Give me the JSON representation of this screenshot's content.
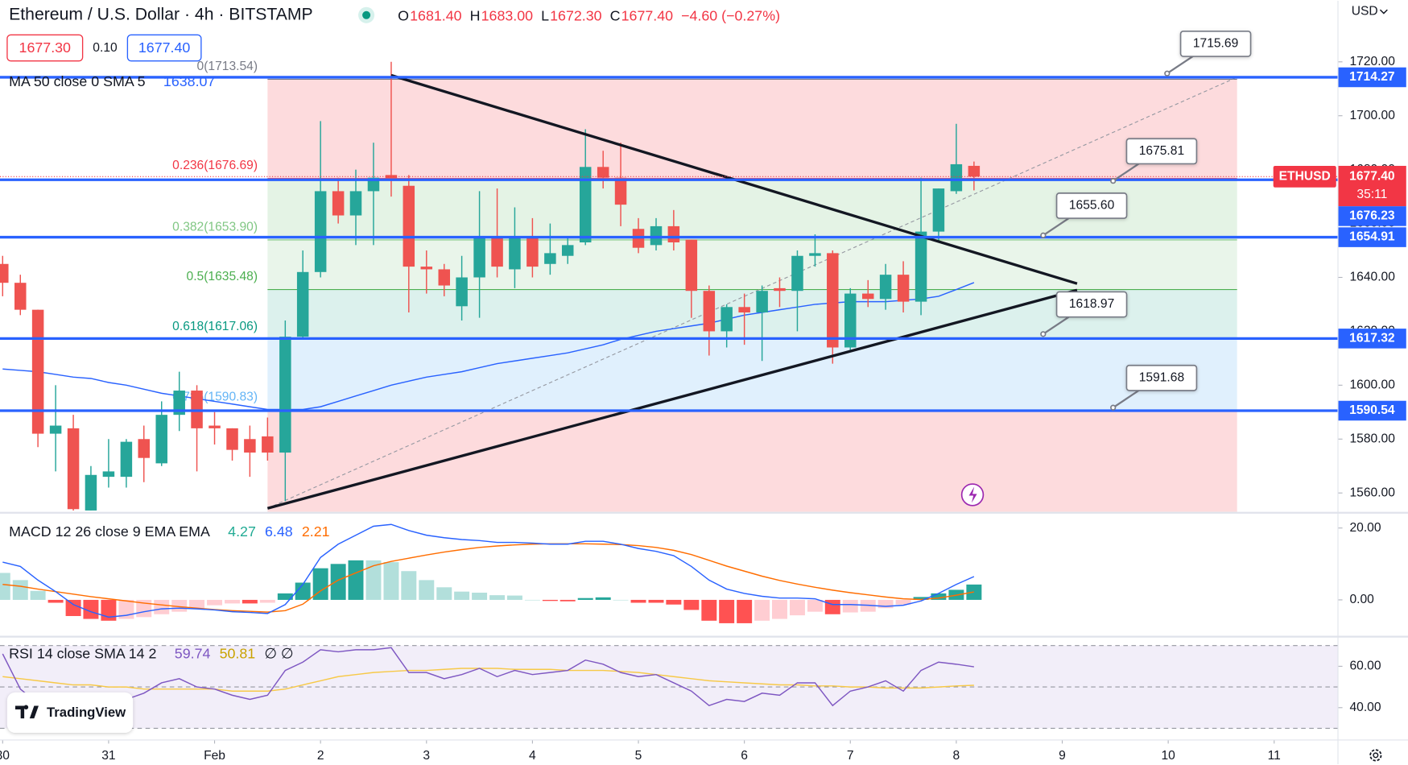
{
  "header": {
    "title": "Ethereum / U.S. Dollar · 4h · BITSTAMP",
    "ohlc": [
      {
        "key": "O",
        "value": "1681.40"
      },
      {
        "key": "H",
        "value": "1683.00"
      },
      {
        "key": "L",
        "value": "1672.30"
      },
      {
        "key": "C",
        "value": "1677.40"
      }
    ],
    "change": "−4.60 (−0.27%)",
    "bid": "1677.30",
    "spread": "0.10",
    "ask": "1677.40",
    "currency": "USD",
    "brand": "TradingView"
  },
  "chart_data": [
    {
      "type": "candlestick",
      "x": [
        0,
        0.167,
        0.333,
        0.5,
        0.667,
        0.833,
        1,
        1.167,
        1.333,
        1.5,
        1.667,
        1.833,
        2,
        2.167,
        2.333,
        2.5,
        2.667,
        2.833,
        3,
        3.167,
        3.333,
        3.5,
        3.667,
        3.833,
        4,
        4.167,
        4.333,
        4.5,
        4.667,
        4.833,
        5,
        5.167,
        5.333,
        5.5,
        5.667,
        5.833,
        6,
        6.167,
        6.333,
        6.5,
        6.667,
        6.833,
        7,
        7.167,
        7.333,
        7.5,
        7.667,
        7.833,
        8,
        8.167,
        8.333,
        8.5,
        8.667,
        8.833,
        9,
        9.167
      ],
      "open": [
        1645,
        1638,
        1628,
        1582,
        1584,
        1553.5,
        1566,
        1566,
        1580,
        1571,
        1589,
        1598,
        1585,
        1584,
        1580,
        1581,
        1575,
        1618,
        1642,
        1672,
        1663,
        1672,
        1678,
        1674,
        1644,
        1643,
        1629.3,
        1640,
        1655,
        1643,
        1655,
        1645,
        1648,
        1653,
        1681,
        1677,
        1658,
        1652,
        1659,
        1654,
        1635,
        1620,
        1629,
        1627,
        1636,
        1635,
        1648,
        1649,
        1614,
        1634,
        1632,
        1641,
        1631,
        1657,
        1672,
        1681.4
      ],
      "high": [
        1648,
        1641,
        1628,
        1600,
        1589,
        1570,
        1580,
        1580,
        1585,
        1594,
        1605,
        1600,
        1590,
        1584,
        1585,
        1588,
        1624,
        1650,
        1698,
        1677,
        1680,
        1690,
        1720,
        1678,
        1650,
        1645,
        1648,
        1672,
        1673,
        1666,
        1662,
        1660,
        1655,
        1695,
        1687,
        1690,
        1662,
        1662,
        1665,
        1654,
        1637,
        1630,
        1634,
        1637,
        1640,
        1650,
        1656,
        1650,
        1636,
        1639,
        1645,
        1646,
        1677,
        1673,
        1697,
        1683
      ],
      "low": [
        1633,
        1626,
        1577,
        1568,
        1553.5,
        1553.5,
        1562,
        1562,
        1564,
        1570,
        1583,
        1568,
        1578,
        1572,
        1566,
        1572,
        1557,
        1617,
        1640,
        1660,
        1652,
        1652,
        1670,
        1627,
        1634,
        1633,
        1624,
        1625,
        1640,
        1636,
        1640,
        1641,
        1645,
        1652,
        1673,
        1659,
        1649,
        1650,
        1650,
        1625,
        1611,
        1614,
        1615,
        1609,
        1629,
        1620,
        1644,
        1608,
        1613,
        1629,
        1628,
        1627,
        1626,
        1653,
        1671,
        1672.3
      ],
      "close": [
        1638,
        1628,
        1582,
        1585,
        1554,
        1566.7,
        1568,
        1579,
        1573,
        1589,
        1598,
        1584,
        1584,
        1576,
        1575,
        1575,
        1618,
        1642,
        1672,
        1663,
        1672,
        1677,
        1676,
        1644,
        1643,
        1637,
        1640,
        1655,
        1644,
        1655,
        1644,
        1649,
        1652,
        1681,
        1677,
        1667,
        1651,
        1659,
        1653,
        1635,
        1620,
        1629,
        1627,
        1635,
        1635,
        1648,
        1649,
        1614,
        1634,
        1632,
        1641,
        1631,
        1657,
        1673,
        1682,
        1677.4
      ],
      "colors": {
        "up": "#26a69a",
        "down": "#ef5350"
      },
      "ma": {
        "name": "MA 50 close 0 SMA 5",
        "color": "#2962ff",
        "values": [
          1606,
          1605.5,
          1605,
          1604,
          1603,
          1602.5,
          1601,
          1600,
          1598.5,
          1597,
          1596,
          1595,
          1594,
          1593,
          1592,
          1591,
          1591,
          1591,
          1592,
          1594,
          1596,
          1598,
          1600,
          1601.5,
          1603,
          1604,
          1605,
          1606.5,
          1608,
          1609,
          1610,
          1611,
          1612,
          1613.5,
          1615,
          1617,
          1618.5,
          1620,
          1621,
          1622,
          1623,
          1624.5,
          1626,
          1627,
          1628,
          1629,
          1630,
          1630.5,
          1631,
          1631,
          1631,
          1631.5,
          1632,
          1633,
          1635.5,
          1638.07
        ]
      },
      "fib": {
        "range": [
          2.5,
          11.65
        ],
        "levels": [
          {
            "value": 1713.54,
            "label": "0(1713.54)",
            "color": "#787b86",
            "fill": "rgba(242,54,69,0.18)"
          },
          {
            "value": 1676.69,
            "label": "0.236(1676.69)",
            "color": "#f23645",
            "fill": "rgba(76,175,80,0.15)"
          },
          {
            "value": 1653.9,
            "label": "0.382(1653.90)",
            "color": "#81c784",
            "fill": "rgba(76,175,80,0.12)"
          },
          {
            "value": 1635.48,
            "label": "0.5(1635.48)",
            "color": "#4caf50",
            "fill": "rgba(8,153,129,0.14)"
          },
          {
            "value": 1617.06,
            "label": "0.618(1617.06)",
            "color": "#089981",
            "fill": "rgba(33,150,243,0.14)"
          },
          {
            "value": 1590.83,
            "label": "0.786(1590.83)",
            "color": "#64b5f6",
            "fill": "rgba(242,54,69,0.18)"
          }
        ]
      },
      "levels": [
        1714.27,
        1676.23,
        1654.91,
        1617.32,
        1590.54
      ],
      "level_color": "#2962ff",
      "callouts": [
        {
          "x": 10.99,
          "value": 1715.69,
          "label": "1715.69"
        },
        {
          "x": 10.48,
          "value": 1675.81,
          "label": "1675.81"
        },
        {
          "x": 9.82,
          "value": 1655.6,
          "label": "1655.60"
        },
        {
          "x": 9.82,
          "value": 1618.97,
          "label": "1618.97"
        },
        {
          "x": 10.48,
          "value": 1591.68,
          "label": "1591.68"
        }
      ],
      "trend_lines": [
        {
          "x": [
            3.667,
            10.14
          ],
          "y": [
            1715,
            1637.7
          ],
          "color": "#131722",
          "width": 3,
          "dashed": false
        },
        {
          "x": [
            2.5,
            10.14
          ],
          "y": [
            1554.3,
            1635.3
          ],
          "color": "#131722",
          "width": 3,
          "dashed": false
        },
        {
          "x": [
            2.5,
            11.65
          ],
          "y": [
            1554.3,
            1714.3
          ],
          "color": "#9598a1",
          "width": 1,
          "dashed": true
        }
      ],
      "current": {
        "name": "ETHUSD",
        "value": 1677.4,
        "label": "1677.40",
        "countdown": "35:11",
        "color": "#f23645"
      },
      "xlim": [
        -0.025,
        12.602
      ],
      "xticks": [
        {
          "value": 0,
          "label": "30"
        },
        {
          "value": 1,
          "label": "31"
        },
        {
          "value": 2,
          "label": "Feb"
        },
        {
          "value": 3,
          "label": "2"
        },
        {
          "value": 4,
          "label": "3"
        },
        {
          "value": 5,
          "label": "4"
        },
        {
          "value": 6,
          "label": "5"
        },
        {
          "value": 7,
          "label": "6"
        },
        {
          "value": 8,
          "label": "7"
        },
        {
          "value": 9,
          "label": "8"
        },
        {
          "value": 10,
          "label": "9"
        },
        {
          "value": 11,
          "label": "10"
        },
        {
          "value": 12,
          "label": "11"
        }
      ],
      "ylim": [
        1553.33,
        1742.67
      ],
      "yticks": [
        {
          "value": 1560,
          "label": "1560.00"
        },
        {
          "value": 1580,
          "label": "1580.00"
        },
        {
          "value": 1600,
          "label": "1600.00"
        },
        {
          "value": 1620,
          "label": "1620.00"
        },
        {
          "value": 1640,
          "label": "1640.00"
        },
        {
          "value": 1660,
          "label": "1660.00"
        },
        {
          "value": 1680,
          "label": "1680.00"
        },
        {
          "value": 1700,
          "label": "1700.00"
        },
        {
          "value": 1720,
          "label": "1720.00"
        }
      ]
    },
    {
      "type": "macd",
      "name": "MACD 12 26 close 9 EMA EMA",
      "histogram": {
        "values": [
          7.5,
          5.5,
          2.5,
          -0.8,
          -4.5,
          -5.3,
          -5.8,
          -5.3,
          -4.8,
          -4,
          -3.3,
          -2.5,
          -1.5,
          -1,
          -1,
          -0.8,
          1.8,
          4.8,
          8.8,
          10,
          11,
          11,
          10.5,
          8,
          5.5,
          3.5,
          2.3,
          2,
          1.3,
          1.2,
          0,
          -0.3,
          -0.4,
          0.5,
          0.7,
          0,
          -0.8,
          -0.8,
          -1.3,
          -2.8,
          -5.8,
          -6.5,
          -6.5,
          -5.8,
          -5.3,
          -4.3,
          -3.3,
          -4,
          -3.5,
          -3.3,
          -2.3,
          -1.3,
          0.8,
          1.8,
          2.8,
          4.27
        ],
        "colors": {
          "grow_above": "#26a69a",
          "fall_above": "#b2dfdb",
          "grow_below": "#ffcdd2",
          "fall_below": "#ff5252"
        },
        "legend_color": "#22ab94"
      },
      "macd": {
        "color": "#2962ff",
        "values": [
          10.5,
          9.3,
          5.5,
          2.3,
          -1.3,
          -3.3,
          -4.8,
          -4.3,
          -3.3,
          -2.5,
          -2.3,
          -2.5,
          -2.8,
          -3.3,
          -3.5,
          -3.8,
          -1.3,
          4.3,
          11.8,
          15.5,
          18,
          20.5,
          21,
          19.3,
          18,
          17.3,
          16.8,
          16.5,
          16,
          16,
          15.8,
          15.5,
          15.5,
          16.3,
          16.3,
          15.5,
          14.3,
          13.5,
          12.3,
          9.3,
          5.5,
          3,
          1.8,
          1,
          0.5,
          0.5,
          0.3,
          -1.3,
          -1.3,
          -1.5,
          -1.8,
          -1.5,
          -0.3,
          1.8,
          4.3,
          6.48
        ]
      },
      "signal": {
        "color": "#ff6d00",
        "values": [
          4.3,
          3.8,
          3.0,
          2.3,
          1.6,
          0.9,
          0.3,
          -0.3,
          -0.9,
          -1.4,
          -1.9,
          -2.3,
          -2.7,
          -3.0,
          -3.2,
          -3.4,
          -3.0,
          -1.2,
          2.5,
          5.5,
          7.5,
          9.5,
          10.7,
          11.6,
          12.5,
          13.3,
          14.0,
          14.6,
          15.0,
          15.3,
          15.5,
          15.6,
          15.6,
          15.6,
          15.5,
          15.4,
          15.1,
          14.6,
          13.8,
          12.6,
          11.0,
          9.4,
          8.0,
          6.6,
          5.4,
          4.4,
          3.5,
          2.7,
          2.0,
          1.4,
          0.8,
          0.3,
          0.1,
          0.5,
          1.3,
          2.21
        ]
      },
      "ylim": [
        -9.75,
        23.75
      ],
      "yticks": [
        {
          "value": 0,
          "label": "0.00"
        },
        {
          "value": 20,
          "label": "20.00"
        }
      ]
    },
    {
      "type": "rsi",
      "name": "RSI 14 close SMA 14 2",
      "rsi": {
        "color": "#7e57c2",
        "values": [
          66,
          49,
          42,
          46,
          40,
          43,
          46,
          44,
          47,
          52,
          54,
          50,
          49,
          46,
          44,
          46,
          58,
          62,
          68,
          67,
          68,
          68,
          69,
          57,
          57,
          54,
          56,
          59,
          55,
          58,
          56,
          57,
          58,
          63,
          61,
          57,
          55,
          56,
          52,
          48,
          41,
          44,
          43,
          47,
          46,
          52,
          52,
          41,
          48,
          50,
          53,
          48,
          58,
          62,
          61,
          59.74
        ]
      },
      "sma": {
        "color": "#f7c948",
        "legend_color": "#c9a200",
        "values": [
          55,
          54,
          53,
          52,
          51,
          51,
          50,
          50,
          49,
          49,
          49,
          49,
          49,
          48,
          48,
          48,
          49,
          51,
          53,
          55,
          56,
          57,
          57.5,
          58,
          58,
          58.5,
          59,
          59,
          59,
          58.5,
          58.5,
          58.5,
          58,
          58,
          58,
          57.5,
          57,
          56,
          55,
          54,
          53,
          52.5,
          52,
          51.5,
          51,
          51,
          50.5,
          50.5,
          50,
          50,
          49.5,
          49.5,
          49.5,
          50,
          50.5,
          50.81
        ]
      },
      "status": "∅ ∅",
      "band": [
        30,
        70
      ],
      "midline": 50,
      "band_color": "rgba(126,87,194,0.1)",
      "ylim": [
        24.8,
        70.4
      ],
      "yticks": [
        {
          "value": 40,
          "label": "40.00"
        },
        {
          "value": 60,
          "label": "60.00"
        }
      ]
    }
  ]
}
